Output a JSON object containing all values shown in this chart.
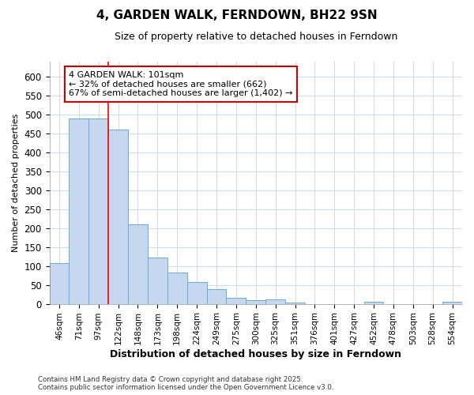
{
  "title": "4, GARDEN WALK, FERNDOWN, BH22 9SN",
  "subtitle": "Size of property relative to detached houses in Ferndown",
  "xlabel": "Distribution of detached houses by size in Ferndown",
  "ylabel": "Number of detached properties",
  "categories": [
    "46sqm",
    "71sqm",
    "97sqm",
    "122sqm",
    "148sqm",
    "173sqm",
    "198sqm",
    "224sqm",
    "249sqm",
    "275sqm",
    "300sqm",
    "325sqm",
    "351sqm",
    "376sqm",
    "401sqm",
    "427sqm",
    "452sqm",
    "478sqm",
    "503sqm",
    "528sqm",
    "554sqm"
  ],
  "values": [
    107,
    490,
    490,
    460,
    210,
    123,
    83,
    57,
    38,
    15,
    10,
    12,
    3,
    0,
    0,
    0,
    5,
    0,
    0,
    0,
    5
  ],
  "bar_color": "#c5d8f0",
  "bar_edge_color": "#6aaad4",
  "red_line_x": 2.5,
  "annotation_text": "4 GARDEN WALK: 101sqm\n← 32% of detached houses are smaller (662)\n67% of semi-detached houses are larger (1,402) →",
  "annotation_box_color": "#ffffff",
  "annotation_box_edge": "#cc0000",
  "ylim": [
    0,
    640
  ],
  "yticks": [
    0,
    50,
    100,
    150,
    200,
    250,
    300,
    350,
    400,
    450,
    500,
    550,
    600
  ],
  "footer": "Contains HM Land Registry data © Crown copyright and database right 2025.\nContains public sector information licensed under the Open Government Licence v3.0.",
  "bg_color": "#ffffff",
  "grid_color": "#d0dce8"
}
